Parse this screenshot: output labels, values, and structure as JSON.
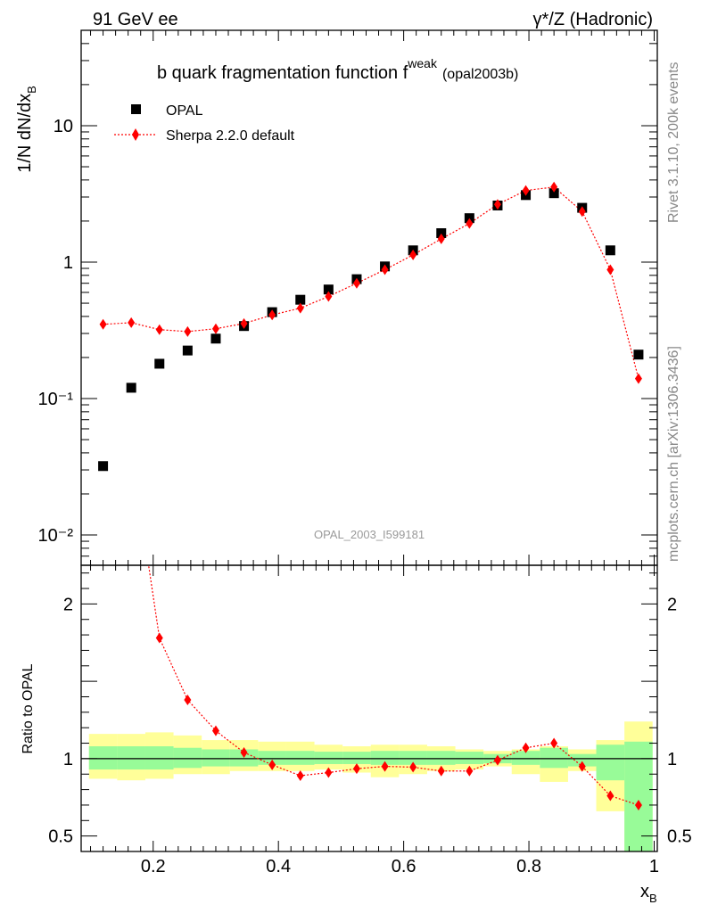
{
  "header": {
    "left": "91 GeV ee",
    "right": "γ*/Z (Hadronic)"
  },
  "side_labels": {
    "upper": "Rivet 3.1.10,  200k events",
    "lower": "mcplots.cern.ch [arXiv:1306.3436]"
  },
  "watermark": "OPAL_2003_I599181",
  "chart_data": {
    "type": "scatter",
    "title": "b quark fragmentation function f",
    "title_superscript": "weak",
    "title_suffix": "(opal2003b)",
    "xlabel": "x",
    "xlabel_subscript": "B",
    "ylabel": "1/N dN/dx",
    "ylabel_subscript": "B",
    "ratio_ylabel": "Ratio to OPAL",
    "xlim": [
      0.085,
      1.005
    ],
    "ylim": [
      0.006,
      50
    ],
    "yscale": "log",
    "ratio_ylim": [
      0.4,
      2.25
    ],
    "x_ticks": [
      "0.2",
      "0.4",
      "0.6",
      "0.8",
      "1"
    ],
    "y_ticks": [
      "10",
      "1",
      "10⁻¹",
      "10⁻²"
    ],
    "ratio_ticks": [
      "2",
      "1",
      "0.5"
    ],
    "legend": {
      "position": "top-left"
    },
    "x": [
      0.12,
      0.165,
      0.21,
      0.255,
      0.3,
      0.345,
      0.39,
      0.435,
      0.48,
      0.525,
      0.57,
      0.615,
      0.66,
      0.705,
      0.75,
      0.795,
      0.84,
      0.885,
      0.93,
      0.975
    ],
    "series": [
      {
        "name": "OPAL",
        "marker": "square",
        "color": "#000000",
        "values": [
          0.032,
          0.12,
          0.18,
          0.225,
          0.275,
          0.34,
          0.43,
          0.53,
          0.63,
          0.75,
          0.93,
          1.22,
          1.63,
          2.1,
          2.6,
          3.1,
          3.2,
          2.5,
          1.22,
          0.21
        ]
      },
      {
        "name": "Sherpa 2.2.0 default",
        "marker": "diamond",
        "color": "#ff0000",
        "values": [
          0.35,
          0.36,
          0.32,
          0.31,
          0.325,
          0.355,
          0.41,
          0.46,
          0.56,
          0.7,
          0.88,
          1.13,
          1.48,
          1.92,
          2.65,
          3.35,
          3.55,
          2.35,
          0.88,
          0.14
        ]
      }
    ],
    "ratio": {
      "values": [
        10.9,
        3.0,
        1.78,
        1.38,
        1.18,
        1.04,
        0.96,
        0.89,
        0.91,
        0.935,
        0.95,
        0.945,
        0.92,
        0.92,
        0.99,
        1.07,
        1.1,
        0.95,
        0.76,
        0.7
      ],
      "band_inner": [
        [
          0.93,
          1.08
        ],
        [
          0.93,
          1.08
        ],
        [
          0.93,
          1.08
        ],
        [
          0.94,
          1.07
        ],
        [
          0.95,
          1.06
        ],
        [
          0.95,
          1.06
        ],
        [
          0.96,
          1.05
        ],
        [
          0.96,
          1.05
        ],
        [
          0.965,
          1.045
        ],
        [
          0.965,
          1.045
        ],
        [
          0.96,
          1.05
        ],
        [
          0.96,
          1.05
        ],
        [
          0.96,
          1.05
        ],
        [
          0.965,
          1.045
        ],
        [
          0.97,
          1.03
        ],
        [
          0.96,
          1.05
        ],
        [
          0.94,
          1.07
        ],
        [
          0.95,
          1.03
        ],
        [
          0.86,
          1.09
        ],
        [
          0.4,
          1.11
        ]
      ],
      "band_outer": [
        [
          0.87,
          1.16
        ],
        [
          0.86,
          1.16
        ],
        [
          0.87,
          1.17
        ],
        [
          0.9,
          1.15
        ],
        [
          0.9,
          1.12
        ],
        [
          0.92,
          1.12
        ],
        [
          0.92,
          1.11
        ],
        [
          0.92,
          1.11
        ],
        [
          0.93,
          1.09
        ],
        [
          0.91,
          1.08
        ],
        [
          0.88,
          1.09
        ],
        [
          0.9,
          1.09
        ],
        [
          0.92,
          1.08
        ],
        [
          0.93,
          1.06
        ],
        [
          0.95,
          1.05
        ],
        [
          0.9,
          1.06
        ],
        [
          0.85,
          1.08
        ],
        [
          0.92,
          1.06
        ],
        [
          0.66,
          1.12
        ],
        [
          0.4,
          1.24
        ]
      ]
    }
  },
  "colors": {
    "band_inner": "#98fb98",
    "band_outer": "#ffff99",
    "mc": "#ff0000",
    "data": "#000000",
    "side_text": "#888888"
  }
}
